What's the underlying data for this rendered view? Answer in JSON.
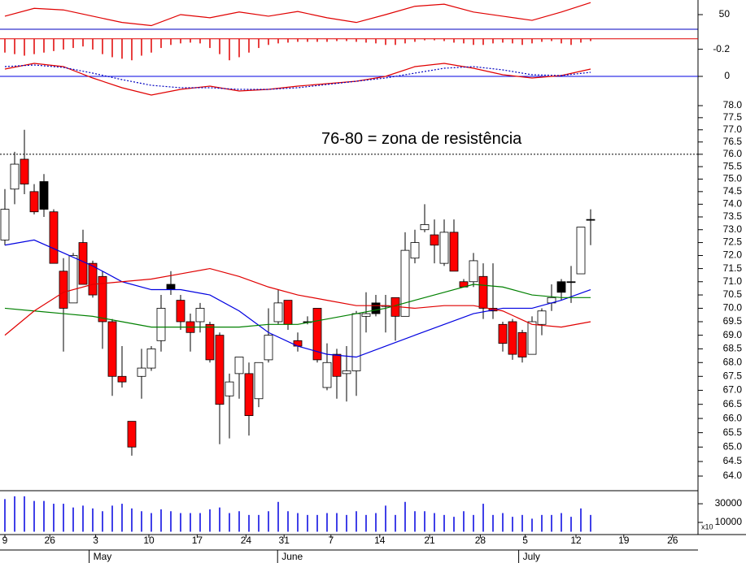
{
  "chart_data": [
    {
      "type": "line",
      "ylim": [
        22,
        78
      ],
      "yticks": [
        50
      ],
      "series": [
        {
          "name": "RSI",
          "color": "#e00000",
          "x": [
            0,
            3,
            6,
            9,
            12,
            15,
            18,
            21,
            24,
            27,
            30,
            33,
            36,
            39,
            42,
            45,
            48,
            51,
            54,
            57,
            60
          ],
          "values": [
            47,
            62,
            59,
            47,
            35,
            29,
            50,
            44,
            55,
            47,
            56,
            44,
            35,
            50,
            66,
            70,
            55,
            47,
            39,
            55,
            73
          ]
        }
      ]
    },
    {
      "type": "bar",
      "ylim": [
        -0.5,
        0.05
      ],
      "yticks": [
        -0.2
      ],
      "color": "#e00000",
      "values": [
        -0.18,
        -0.2,
        -0.22,
        -0.2,
        -0.18,
        -0.16,
        -0.14,
        -0.12,
        -0.1,
        -0.14,
        -0.2,
        -0.24,
        -0.26,
        -0.28,
        -0.22,
        -0.18,
        -0.12,
        -0.08,
        -0.06,
        -0.05,
        -0.06,
        -0.12,
        -0.2,
        -0.28,
        -0.24,
        -0.18,
        -0.12,
        -0.08,
        -0.06,
        -0.05,
        -0.04,
        -0.04,
        -0.04,
        -0.04,
        -0.03,
        -0.03,
        -0.04,
        -0.05,
        -0.06,
        -0.08,
        -0.08,
        -0.06,
        -0.04,
        -0.02,
        -0.02,
        -0.03,
        -0.05,
        -0.06,
        -0.08,
        -0.08,
        -0.06,
        -0.05,
        -0.06,
        -0.08,
        -0.06,
        -0.04,
        -0.03,
        -0.06,
        -0.08,
        -0.05,
        -0.03
      ]
    },
    {
      "type": "line",
      "ylim": [
        -0.3,
        0.35
      ],
      "yticks": [
        0
      ],
      "series": [
        {
          "name": "MACD",
          "color": "#e00000",
          "x": [
            0,
            3,
            6,
            9,
            12,
            15,
            18,
            21,
            24,
            27,
            30,
            33,
            36,
            39,
            42,
            45,
            48,
            51,
            54,
            57,
            60
          ],
          "values": [
            0.09,
            0.16,
            0.12,
            -0.02,
            -0.14,
            -0.23,
            -0.16,
            -0.12,
            -0.18,
            -0.16,
            -0.12,
            -0.09,
            -0.06,
            0,
            0.12,
            0.16,
            0.1,
            0.02,
            -0.02,
            0.01,
            0.09
          ]
        },
        {
          "name": "Signal",
          "color": "#0000c0",
          "dashed": true,
          "x": [
            0,
            3,
            6,
            9,
            12,
            15,
            18,
            21,
            24,
            27,
            30,
            33,
            36,
            39,
            42,
            45,
            48,
            51,
            54,
            57,
            60
          ],
          "values": [
            0.12,
            0.14,
            0.11,
            0.04,
            -0.04,
            -0.11,
            -0.14,
            -0.14,
            -0.16,
            -0.16,
            -0.14,
            -0.1,
            -0.06,
            -0.02,
            0.04,
            0.1,
            0.12,
            0.08,
            0.02,
            0.01,
            0.05
          ]
        }
      ]
    },
    {
      "type": "candlestick",
      "log_scale": true,
      "ylim": [
        63.53,
        78.34
      ],
      "xlim": [
        -0.5,
        71
      ],
      "yticks": [
        {
          "value": 78,
          "label": "78.0"
        },
        {
          "value": 77.5,
          "label": "77.5"
        },
        {
          "value": 77,
          "label": "77.0"
        },
        {
          "value": 76.5,
          "label": "76.5"
        },
        {
          "value": 76,
          "label": "76.0"
        },
        {
          "value": 75.5,
          "label": "75.5"
        },
        {
          "value": 75,
          "label": "75.0"
        },
        {
          "value": 74.5,
          "label": "74.5"
        },
        {
          "value": 74,
          "label": "74.0"
        },
        {
          "value": 73.5,
          "label": "73.5"
        },
        {
          "value": 73,
          "label": "73.0"
        },
        {
          "value": 72.5,
          "label": "72.5"
        },
        {
          "value": 72,
          "label": "72.0"
        },
        {
          "value": 71.5,
          "label": "71.5"
        },
        {
          "value": 71,
          "label": "71.0"
        },
        {
          "value": 70.5,
          "label": "70.5"
        },
        {
          "value": 70,
          "label": "70.0"
        },
        {
          "value": 69.5,
          "label": "69.5"
        },
        {
          "value": 69,
          "label": "69.0"
        },
        {
          "value": 68.5,
          "label": "68.5"
        },
        {
          "value": 68,
          "label": "68.0"
        },
        {
          "value": 67.5,
          "label": "67.5"
        },
        {
          "value": 67,
          "label": "67.0"
        },
        {
          "value": 66.5,
          "label": "66.5"
        },
        {
          "value": 66,
          "label": "66.0"
        },
        {
          "value": 65.5,
          "label": "65.5"
        },
        {
          "value": 65,
          "label": "65.0"
        },
        {
          "value": 64.5,
          "label": "64.5"
        },
        {
          "value": 64,
          "label": "64.0"
        }
      ],
      "xticks": [
        {
          "value": 0,
          "label": "9"
        },
        {
          "value": 4.6,
          "label": "26"
        },
        {
          "value": 9.3,
          "label": "3"
        },
        {
          "value": 14.75,
          "label": "10"
        },
        {
          "value": 19.7,
          "label": "17"
        },
        {
          "value": 24.7,
          "label": "24"
        },
        {
          "value": 28.6,
          "label": "31"
        },
        {
          "value": 33.4,
          "label": "7"
        },
        {
          "value": 38.4,
          "label": "14"
        },
        {
          "value": 43.5,
          "label": "21"
        },
        {
          "value": 48.7,
          "label": "28"
        },
        {
          "value": 53.3,
          "label": "5"
        },
        {
          "value": 58.5,
          "label": "12"
        },
        {
          "value": 63.4,
          "label": "19"
        },
        {
          "value": 68.4,
          "label": "26"
        }
      ],
      "months": [
        {
          "value": 9.3,
          "label": "May"
        },
        {
          "value": 28.6,
          "label": "June"
        },
        {
          "value": 53.3,
          "label": "July"
        }
      ],
      "resistance_line": 76,
      "annotation": "76-80 = zona de resistência",
      "annotation_color": "#0000ff",
      "open": [
        72.6,
        74.6,
        75.8,
        74.5,
        74.9,
        73.7,
        71.4,
        70.2,
        72.5,
        71.7,
        71.2,
        69.5,
        67.5,
        65.9,
        67.5,
        67.8,
        68.8,
        70.9,
        70.3,
        69.5,
        69.5,
        69.4,
        69.0,
        66.8,
        67.6,
        67.6,
        66.7,
        68.1,
        69.5,
        70.3,
        68.8,
        69.5,
        70.0,
        67.1,
        68.3,
        67.6,
        67.7,
        69.7,
        70.2,
        70.1,
        70.4,
        69.7,
        71.9,
        73.0,
        72.8,
        71.7,
        72.9,
        71.0,
        71.0,
        71.2,
        70.0,
        69.4,
        69.5,
        69.1,
        68.3,
        69.4,
        70.2,
        71.0,
        71.0,
        71.3,
        73.4
      ],
      "high": [
        74.6,
        76.1,
        77.0,
        74.8,
        75.2,
        73.8,
        71.9,
        72.1,
        73.0,
        71.8,
        71.4,
        69.6,
        68.6,
        65.9,
        68.5,
        68.6,
        70.5,
        71.4,
        70.5,
        69.8,
        70.2,
        69.5,
        69.1,
        67.6,
        68.2,
        68.0,
        68.0,
        70.0,
        70.7,
        70.3,
        69.1,
        69.7,
        70.0,
        68.7,
        68.5,
        68.6,
        69.9,
        70.6,
        70.5,
        70.5,
        70.4,
        72.9,
        73.0,
        74.0,
        73.4,
        73.4,
        73.4,
        71.1,
        72.1,
        71.7,
        71.7,
        69.5,
        69.6,
        69.2,
        69.7,
        70.0,
        70.9,
        71.1,
        71.6,
        73.1,
        73.8
      ],
      "low": [
        72.4,
        74.0,
        74.4,
        73.6,
        73.5,
        71.7,
        68.4,
        70.2,
        70.9,
        70.4,
        68.5,
        66.8,
        67.1,
        64.7,
        66.7,
        67.7,
        68.4,
        70.5,
        69.2,
        68.4,
        69.1,
        68.0,
        65.1,
        65.3,
        66.7,
        65.4,
        66.4,
        68.0,
        69.4,
        69.2,
        68.4,
        69.4,
        68.0,
        67.0,
        66.7,
        66.6,
        66.8,
        69.1,
        69.7,
        69.1,
        68.8,
        69.7,
        71.7,
        72.9,
        71.7,
        71.6,
        71.4,
        70.8,
        70.8,
        69.6,
        69.6,
        68.4,
        68.1,
        68.0,
        68.3,
        69.0,
        69.9,
        70.3,
        70.2,
        71.3,
        72.4
      ],
      "close": [
        73.8,
        75.6,
        74.8,
        73.7,
        73.8,
        71.7,
        70.0,
        72.0,
        70.9,
        70.5,
        69.5,
        67.5,
        67.3,
        65.0,
        67.8,
        68.5,
        70.0,
        70.7,
        69.5,
        69.1,
        70.0,
        68.1,
        66.5,
        67.3,
        68.2,
        66.1,
        68.0,
        69.0,
        70.2,
        69.4,
        68.6,
        69.5,
        68.1,
        68.0,
        67.5,
        67.7,
        69.8,
        69.8,
        69.8,
        70.1,
        69.7,
        72.2,
        72.5,
        73.2,
        72.4,
        72.9,
        71.4,
        70.8,
        71.8,
        70.0,
        69.9,
        68.7,
        68.3,
        68.2,
        69.5,
        69.9,
        70.4,
        70.6,
        71.0,
        73.1,
        73.4
      ],
      "colors": [
        "#ffffff",
        "#ffffff",
        "#ff0000",
        "#ff0000",
        "#000000",
        "#ff0000",
        "#ff0000",
        "#ffffff",
        "#ff0000",
        "#ff0000",
        "#ff0000",
        "#ff0000",
        "#ff0000",
        "#ff0000",
        "#ffffff",
        "#ffffff",
        "#ffffff",
        "#000000",
        "#ff0000",
        "#ff0000",
        "#ffffff",
        "#ff0000",
        "#ff0000",
        "#ffffff",
        "#ffffff",
        "#ff0000",
        "#ffffff",
        "#ffffff",
        "#ffffff",
        "#ff0000",
        "#ff0000",
        "#000000",
        "#ff0000",
        "#ffffff",
        "#ff0000",
        "#ffffff",
        "#ffffff",
        "#ffffff",
        "#000000",
        "#ffffff",
        "#ff0000",
        "#ffffff",
        "#ffffff",
        "#ffffff",
        "#ff0000",
        "#ffffff",
        "#ff0000",
        "#ff0000",
        "#ffffff",
        "#ff0000",
        "#ff0000",
        "#ff0000",
        "#ff0000",
        "#ff0000",
        "#ffffff",
        "#ffffff",
        "#ffffff",
        "#000000",
        "#000000",
        "#ffffff",
        "#000000"
      ],
      "series": [
        {
          "name": "MA short",
          "color": "#0000e0",
          "x": [
            0,
            3,
            6,
            9,
            12,
            15,
            18,
            21,
            24,
            27,
            30,
            33,
            36,
            39,
            42,
            45,
            48,
            51,
            54,
            57,
            60
          ],
          "values": [
            72.4,
            72.6,
            72.1,
            71.6,
            71.0,
            70.7,
            70.7,
            70.5,
            69.9,
            69.1,
            68.6,
            68.3,
            68.2,
            68.6,
            69.0,
            69.4,
            69.8,
            70.0,
            70.0,
            70.3,
            70.7
          ]
        },
        {
          "name": "MA long",
          "color": "#008000",
          "x": [
            0,
            3,
            6,
            9,
            12,
            15,
            18,
            21,
            24,
            27,
            30,
            33,
            36,
            39,
            42,
            45,
            48,
            51,
            54,
            57,
            60
          ],
          "values": [
            70.0,
            69.9,
            69.8,
            69.7,
            69.5,
            69.3,
            69.3,
            69.3,
            69.3,
            69.4,
            69.4,
            69.6,
            69.8,
            70.0,
            70.3,
            70.6,
            70.9,
            70.8,
            70.5,
            70.4,
            70.4
          ]
        },
        {
          "name": "MA mid",
          "color": "#e00000",
          "x": [
            0,
            3,
            6,
            9,
            12,
            15,
            18,
            21,
            24,
            27,
            30,
            33,
            36,
            39,
            42,
            45,
            48,
            51,
            54,
            57,
            60
          ],
          "values": [
            69.0,
            69.9,
            70.6,
            70.9,
            71.0,
            71.1,
            71.3,
            71.5,
            71.2,
            70.8,
            70.5,
            70.3,
            70.1,
            70.1,
            70.0,
            70.1,
            70.1,
            69.9,
            69.4,
            69.3,
            69.5
          ]
        }
      ]
    },
    {
      "type": "bar",
      "ylim": [
        0,
        44000
      ],
      "yticks": [
        30000,
        10000
      ],
      "color": "#0000e0",
      "multiplier_label": "x10",
      "values": [
        35000,
        38000,
        38000,
        33000,
        33000,
        30000,
        30000,
        26000,
        28000,
        25000,
        22000,
        28000,
        30000,
        25000,
        22000,
        20000,
        24000,
        22000,
        20000,
        20000,
        20000,
        24000,
        26000,
        20000,
        22000,
        18000,
        18000,
        22000,
        32000,
        22000,
        20000,
        18000,
        18000,
        20000,
        20000,
        18000,
        22000,
        18000,
        20000,
        28000,
        18000,
        32000,
        22000,
        22000,
        20000,
        18000,
        16000,
        22000,
        18000,
        30000,
        18000,
        20000,
        16000,
        18000,
        14000,
        18000,
        18000,
        20000,
        16000,
        25000,
        18000
      ]
    }
  ]
}
